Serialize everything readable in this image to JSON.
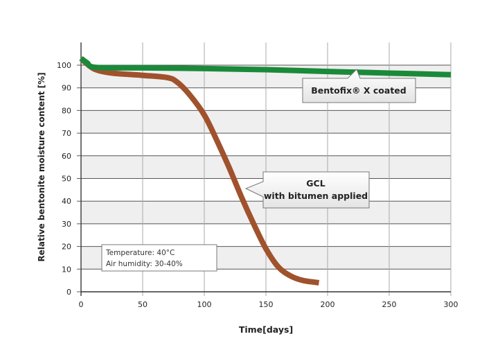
{
  "chart_data": {
    "type": "line",
    "title": "",
    "xlabel": "Time[days]",
    "ylabel": "Relative bentonite moisture content [%]",
    "xlim": [
      0,
      300
    ],
    "ylim": [
      0,
      110
    ],
    "xticks": [
      0,
      50,
      100,
      150,
      200,
      250,
      300
    ],
    "yticks": [
      0,
      10,
      20,
      30,
      40,
      50,
      60,
      70,
      80,
      90,
      100
    ],
    "grid": true,
    "series": [
      {
        "name": "Bentofix® X coated",
        "color": "#1a8a3a",
        "x": [
          0,
          5,
          12,
          50,
          100,
          150,
          200,
          250,
          300
        ],
        "y": [
          103,
          101,
          99,
          98.8,
          98.5,
          98,
          97.2,
          96.5,
          95.8
        ]
      },
      {
        "name": "GCL with bitumen applied",
        "label_lines": [
          "GCL",
          "with bitumen applied"
        ],
        "color": "#a0522d",
        "x": [
          0,
          5,
          12,
          25,
          50,
          70,
          78,
          88,
          100,
          110,
          120,
          130,
          140,
          150,
          160,
          170,
          180,
          193
        ],
        "y": [
          103,
          100.5,
          98,
          96.5,
          95.5,
          94.5,
          92.5,
          87,
          78,
          67,
          55,
          42,
          30,
          19,
          11,
          7,
          5,
          4
        ]
      }
    ],
    "annotations": {
      "conditions": [
        "Temperature: 40°C",
        "Air humidity: 30-40%"
      ]
    }
  }
}
